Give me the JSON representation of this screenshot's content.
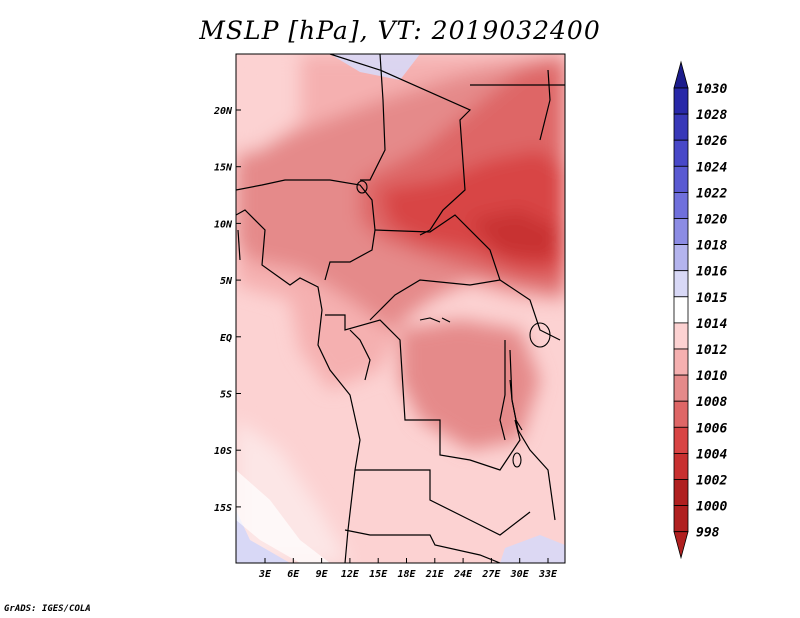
{
  "title": "MSLP [hPa], VT: 2019032400",
  "footer": "GrADS: IGES/COLA",
  "map": {
    "lon_ticks": [
      "3E",
      "6E",
      "9E",
      "12E",
      "15E",
      "18E",
      "21E",
      "24E",
      "27E",
      "30E",
      "33E"
    ],
    "lat_ticks": [
      "20N",
      "15N",
      "10N",
      "5N",
      "EQ",
      "5S",
      "10S",
      "15S"
    ]
  },
  "colorbar": {
    "levels": [
      "1030",
      "1028",
      "1026",
      "1024",
      "1022",
      "1020",
      "1018",
      "1016",
      "1015",
      "1014",
      "1012",
      "1010",
      "1008",
      "1006",
      "1004",
      "1002",
      "1000",
      "998"
    ],
    "colors": [
      "#1c1c8c",
      "#2828a8",
      "#3838b8",
      "#4848c8",
      "#5a5ad2",
      "#7070dc",
      "#8c8ce4",
      "#b4b4ee",
      "#d8d8f6",
      "#ffffff",
      "#fcd2d2",
      "#f5b0b0",
      "#e58a8a",
      "#de6666",
      "#d84444",
      "#c83030",
      "#b02020",
      "#b02020"
    ]
  }
}
